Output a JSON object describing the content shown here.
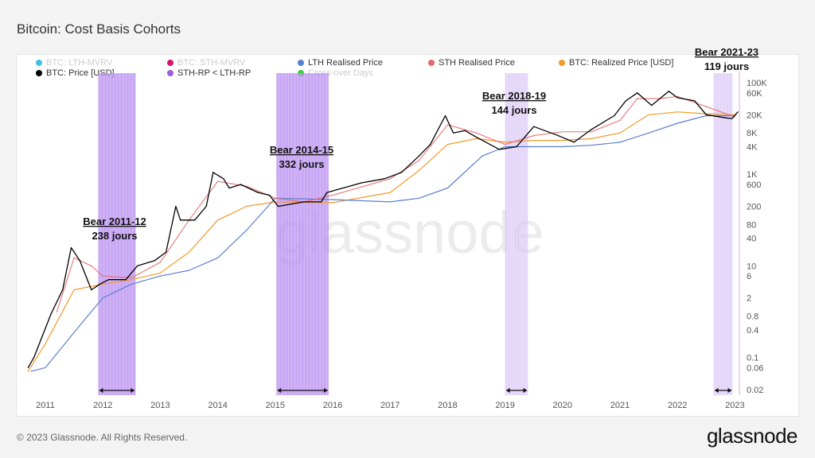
{
  "title": "Bitcoin: Cost Basis Cohorts",
  "footer": "© 2023 Glassnode. All Rights Reserved.",
  "brand": "glassnode",
  "legend": [
    {
      "label": "BTC: LTH-MVRV",
      "color": "#3fc1e9",
      "active": false
    },
    {
      "label": "BTC: STH-MVRV",
      "color": "#d6156e",
      "active": false
    },
    {
      "label": "LTH Realised Price",
      "color": "#5b7fd1",
      "active": true
    },
    {
      "label": "STH Realised Price",
      "color": "#e8676a",
      "active": true
    },
    {
      "label": "BTC: Realized Price [USD]",
      "color": "#f39a2b",
      "active": true
    },
    {
      "label": "BTC: Price [USD]",
      "color": "#000000",
      "active": true
    },
    {
      "label": "STH-RP < LTH-RP",
      "color": "#9b5de5",
      "active": true
    },
    {
      "label": "Cross-over Days",
      "color": "#3ad13a",
      "active": false
    }
  ],
  "chart_data": {
    "type": "line",
    "title": "Bitcoin: Cost Basis Cohorts",
    "y_scale": "log",
    "ylim": [
      0.015,
      150000
    ],
    "xlim": [
      2010.7,
      2023.1
    ],
    "x_ticks": [
      "2011",
      "2012",
      "2013",
      "2014",
      "2015",
      "2016",
      "2017",
      "2018",
      "2019",
      "2020",
      "2021",
      "2022",
      "2023"
    ],
    "y_ticks": [
      "100K",
      "60K",
      "20K",
      "8K",
      "4K",
      "1K",
      "600",
      "200",
      "80",
      "40",
      "10",
      "6",
      "2",
      "0.8",
      "0.4",
      "0.1",
      "0.06",
      "0.02"
    ],
    "y_tick_values": [
      100000,
      60000,
      20000,
      8000,
      4000,
      1000,
      600,
      200,
      80,
      40,
      10,
      6,
      2,
      0.8,
      0.4,
      0.1,
      0.06,
      0.02
    ],
    "series": [
      {
        "name": "BTC: Realized Price [USD]",
        "color": "#f39a2b",
        "x": [
          2010.7,
          2011.0,
          2011.5,
          2012.0,
          2012.5,
          2013.0,
          2013.5,
          2014.0,
          2014.5,
          2015.0,
          2016.0,
          2017.0,
          2017.5,
          2018.0,
          2018.5,
          2019.0,
          2019.5,
          2020.0,
          2020.5,
          2021.0,
          2021.5,
          2022.0,
          2022.5,
          2023.0
        ],
        "y": [
          0.05,
          0.2,
          3,
          4,
          5,
          7,
          20,
          100,
          200,
          250,
          240,
          400,
          1200,
          4500,
          6000,
          5000,
          5500,
          5500,
          6000,
          8000,
          20000,
          23000,
          21000,
          20000
        ]
      },
      {
        "name": "LTH Realised Price",
        "color": "#5b7fd1",
        "x": [
          2010.75,
          2011.0,
          2011.6,
          2012.0,
          2012.5,
          2013.0,
          2013.5,
          2014.0,
          2014.5,
          2015.0,
          2016.0,
          2017.0,
          2017.5,
          2018.0,
          2018.6,
          2019.0,
          2020.0,
          2020.5,
          2021.0,
          2021.5,
          2022.0,
          2022.5,
          2023.0
        ],
        "y": [
          0.05,
          0.06,
          0.5,
          2,
          4,
          6,
          8,
          15,
          60,
          300,
          280,
          250,
          300,
          500,
          2500,
          4000,
          4000,
          4300,
          5000,
          8000,
          13000,
          19000,
          19000
        ]
      },
      {
        "name": "STH Realised Price",
        "color": "#e8676a",
        "x": [
          2011.2,
          2011.5,
          2011.8,
          2012.0,
          2012.5,
          2013.0,
          2013.5,
          2014.0,
          2014.5,
          2015.0,
          2015.5,
          2016.0,
          2017.0,
          2017.5,
          2018.0,
          2018.5,
          2019.0,
          2019.5,
          2020.0,
          2020.5,
          2021.0,
          2021.3,
          2021.7,
          2022.0,
          2022.5,
          2023.0
        ],
        "y": [
          1,
          15,
          10,
          6,
          5.5,
          12,
          100,
          700,
          550,
          300,
          250,
          350,
          800,
          2000,
          12000,
          8000,
          4500,
          7000,
          8500,
          8500,
          15000,
          45000,
          45000,
          50000,
          30000,
          18000
        ]
      },
      {
        "name": "BTC: Price [USD]",
        "color": "#000000",
        "x": [
          2010.7,
          2010.8,
          2010.95,
          2011.1,
          2011.3,
          2011.45,
          2011.6,
          2011.8,
          2011.95,
          2012.1,
          2012.4,
          2012.6,
          2012.9,
          2013.1,
          2013.27,
          2013.35,
          2013.6,
          2013.8,
          2013.92,
          2014.1,
          2014.2,
          2014.4,
          2014.7,
          2014.9,
          2015.05,
          2015.5,
          2015.8,
          2015.9,
          2016.5,
          2016.9,
          2017.2,
          2017.5,
          2017.7,
          2017.96,
          2018.1,
          2018.3,
          2018.5,
          2018.9,
          2019.2,
          2019.5,
          2019.9,
          2020.2,
          2020.5,
          2020.9,
          2021.1,
          2021.3,
          2021.55,
          2021.85,
          2022.0,
          2022.3,
          2022.5,
          2022.85,
          2022.95,
          2023.05
        ],
        "y": [
          0.06,
          0.1,
          0.3,
          0.9,
          3,
          25,
          13,
          3,
          4,
          5,
          5,
          10,
          13,
          20,
          200,
          100,
          100,
          200,
          1100,
          800,
          500,
          600,
          400,
          350,
          200,
          250,
          250,
          400,
          650,
          800,
          1100,
          2500,
          4500,
          19000,
          8000,
          9000,
          6500,
          3500,
          4000,
          11000,
          7200,
          5000,
          9500,
          19000,
          40000,
          60000,
          32000,
          65000,
          47000,
          40000,
          20000,
          17000,
          16500,
          23000
        ]
      }
    ],
    "bands": [
      {
        "name": "STH-RP < LTH-RP",
        "start": 2011.92,
        "end": 2012.57,
        "label": "Bear 2011-12",
        "days": "238 jours"
      },
      {
        "name": "STH-RP < LTH-RP",
        "start": 2015.02,
        "end": 2015.93,
        "label": "Bear 2014-15",
        "days": "332 jours"
      },
      {
        "name": "STH-RP < LTH-RP",
        "start": 2019.0,
        "end": 2019.4,
        "label": "Bear 2018-19",
        "days": "144 jours"
      },
      {
        "name": "STH-RP < LTH-RP",
        "start": 2022.63,
        "end": 2022.96,
        "label": "Bear 2021-23",
        "days": "119 jours"
      }
    ],
    "watermark": "glassnode"
  }
}
